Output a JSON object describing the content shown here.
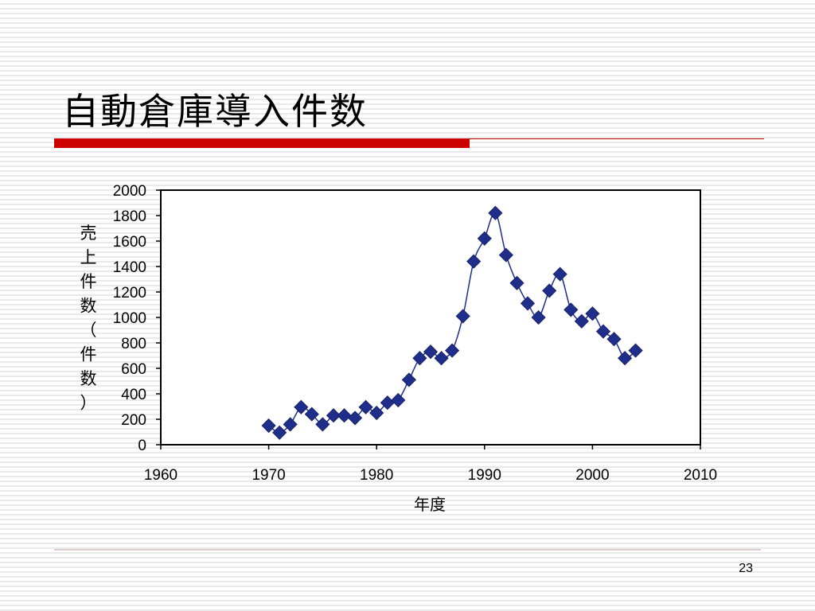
{
  "slide": {
    "title": "自動倉庫導入件数",
    "page_number": "23"
  },
  "colors": {
    "accent_bar": "#cc0000",
    "marker": "#1f2e8a",
    "line": "#1f2e8a"
  },
  "chart_data": {
    "type": "line",
    "title": "",
    "xlabel": "年度",
    "ylabel": "売上件数（件数）",
    "xlim": [
      1960,
      2010
    ],
    "ylim": [
      0,
      2000
    ],
    "xticks": [
      1960,
      1970,
      1980,
      1990,
      2000,
      2010
    ],
    "yticks": [
      0,
      200,
      400,
      600,
      800,
      1000,
      1200,
      1400,
      1600,
      1800,
      2000
    ],
    "grid": false,
    "legend": "none",
    "marker": "diamond",
    "smooth": true,
    "series": [
      {
        "x": [
          1970,
          1971,
          1972,
          1973,
          1974,
          1975,
          1976,
          1977,
          1978,
          1979,
          1980,
          1981,
          1982,
          1983,
          1984,
          1985,
          1986,
          1987,
          1988,
          1989,
          1990,
          1991,
          1992,
          1993,
          1994,
          1995,
          1996,
          1997,
          1998,
          1999,
          2000,
          2001,
          2002,
          2003,
          2004
        ],
        "y": [
          150,
          95,
          160,
          295,
          240,
          160,
          230,
          230,
          210,
          295,
          250,
          330,
          350,
          510,
          680,
          730,
          680,
          740,
          1010,
          1440,
          1620,
          1820,
          1490,
          1270,
          1110,
          1000,
          1210,
          1340,
          1060,
          970,
          1030,
          890,
          830,
          680,
          740
        ]
      }
    ]
  }
}
